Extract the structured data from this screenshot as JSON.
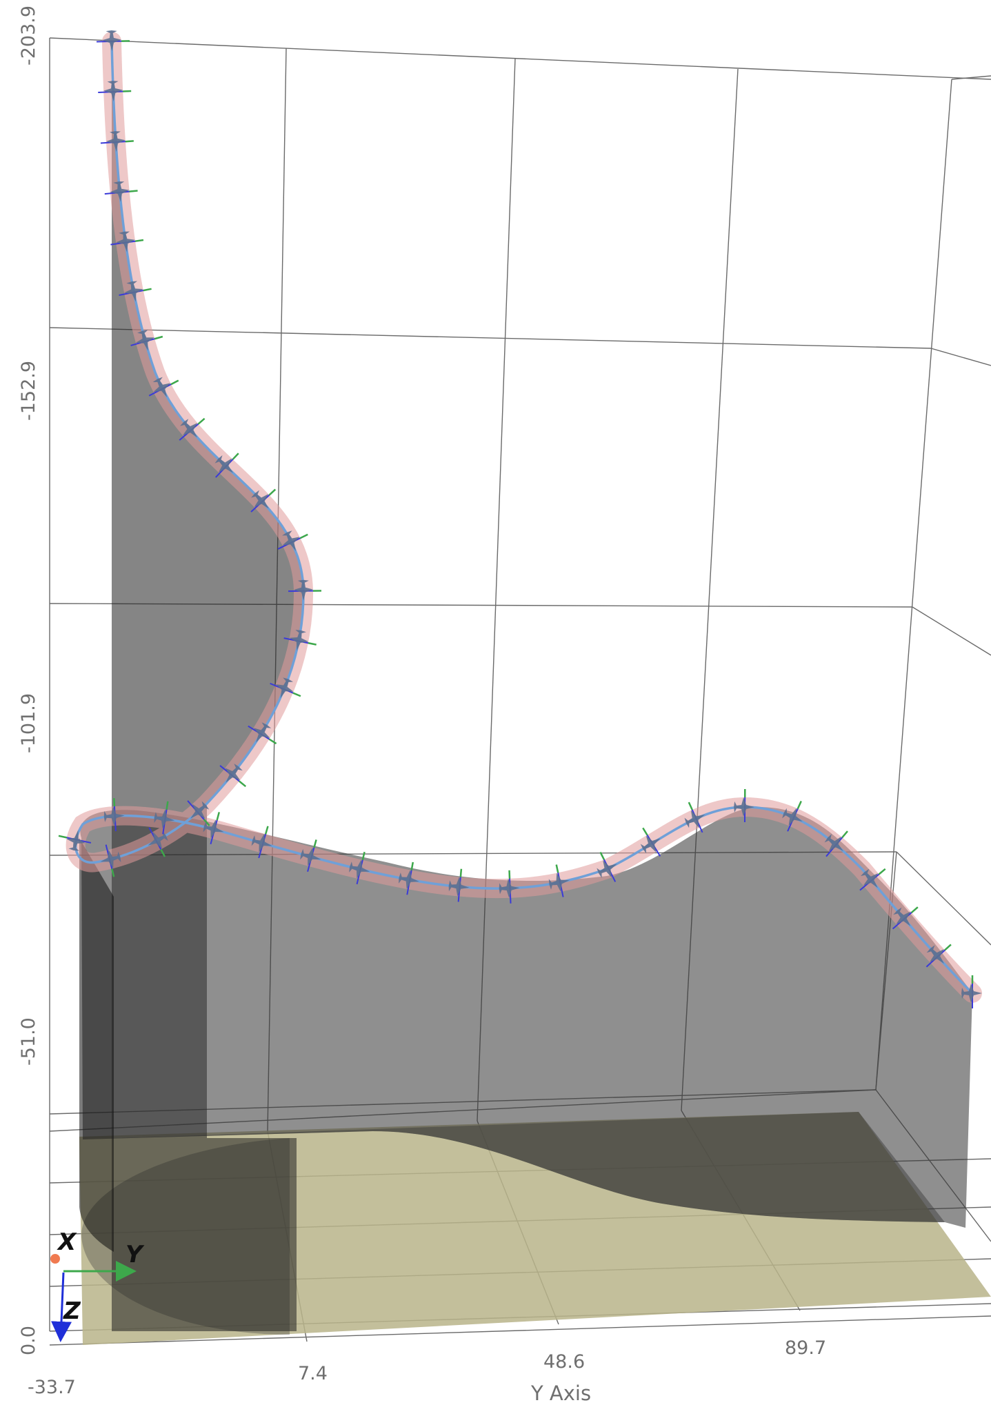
{
  "chart_data": {
    "type": "3d-line",
    "title": "",
    "vertical_axis": {
      "label": "",
      "ticks": [
        "-203.9",
        "-152.9",
        "-101.9",
        "-51.0",
        "0.0"
      ],
      "range": [
        -203.9,
        0.0
      ]
    },
    "horizontal_axis": {
      "label": "Y Axis",
      "ticks": [
        "-33.7",
        "7.4",
        "48.6",
        "89.7"
      ],
      "range": [
        -33.7,
        120
      ]
    },
    "grid": true,
    "legend": "none",
    "trajectory": {
      "name": "",
      "points_yz": [
        [
          -19,
          -203.9
        ],
        [
          -18,
          -195
        ],
        [
          -17,
          -185
        ],
        [
          -16,
          -170
        ],
        [
          -14,
          -160
        ],
        [
          -8,
          -150
        ],
        [
          5,
          -140
        ],
        [
          15,
          -130
        ],
        [
          18,
          -120
        ],
        [
          12,
          -110
        ],
        [
          0,
          -100
        ],
        [
          -10,
          -93
        ],
        [
          -22,
          -90
        ],
        [
          -29,
          -87
        ],
        [
          -24,
          -84
        ],
        [
          -10,
          -85
        ],
        [
          5,
          -83
        ],
        [
          22,
          -81
        ],
        [
          40,
          -80
        ],
        [
          60,
          -82
        ],
        [
          75,
          -86
        ],
        [
          82,
          -88
        ],
        [
          90,
          -86
        ],
        [
          100,
          -80
        ],
        [
          112,
          -73
        ],
        [
          124,
          -66
        ]
      ],
      "colors": {
        "path": "#6fa0d8",
        "tube": "#e09a9a",
        "curtain": "#4d4d4d",
        "ground": "#b9b48a",
        "aircraft": "#5b6f90",
        "y_body_axis": "#3da84b",
        "z_body_axis": "#3a3ad8"
      }
    },
    "orientation_triad": {
      "labels": [
        "X",
        "Y",
        "Z"
      ],
      "colors": [
        "#f07a50",
        "#3da84b",
        "#1f2fd8"
      ]
    }
  }
}
